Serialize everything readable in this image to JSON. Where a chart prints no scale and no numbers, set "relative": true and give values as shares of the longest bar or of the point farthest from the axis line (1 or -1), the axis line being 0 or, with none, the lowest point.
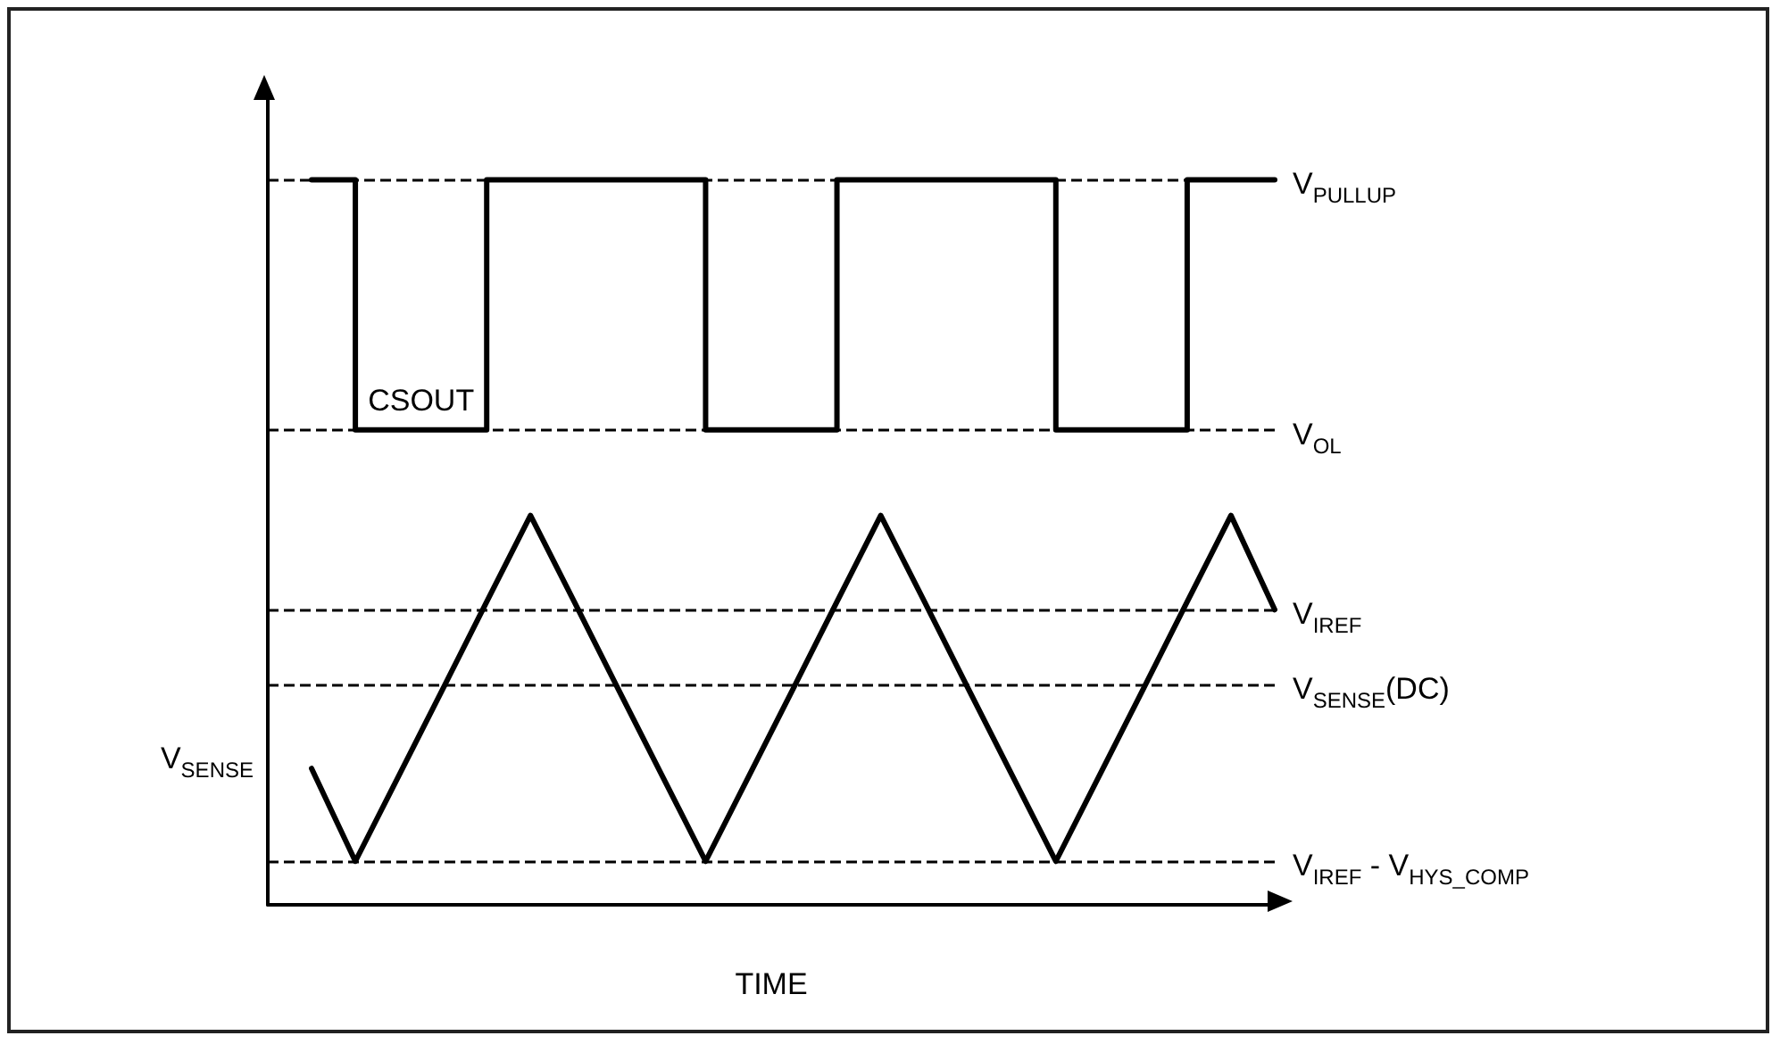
{
  "chart_data": {
    "type": "line",
    "relative": true,
    "xlabel": "TIME",
    "legend": false,
    "grid": false,
    "categories": [
      null,
      null,
      null,
      null,
      null,
      null,
      null,
      null,
      null,
      null,
      null,
      null,
      null,
      null,
      null,
      null,
      null,
      null,
      null,
      null,
      null,
      null,
      null,
      null
    ],
    "series": [
      {
        "name": "CSOUT",
        "type": "step",
        "color": "#000000",
        "values": [
          null,
          1,
          0.655,
          0.655,
          0.655,
          1,
          1,
          1,
          1,
          1,
          0.655,
          0.655,
          0.655,
          1,
          1,
          1,
          1,
          1,
          0.655,
          0.655,
          0.655,
          1,
          1,
          1
        ]
      },
      {
        "name": "V$_{SENSE}$",
        "color": "#000000",
        "values": [
          null,
          0.188,
          0.06,
          0.179,
          0.298,
          0.418,
          0.537,
          0.418,
          0.298,
          0.179,
          0.06,
          0.179,
          0.298,
          0.418,
          0.537,
          0.418,
          0.298,
          0.179,
          0.06,
          0.179,
          0.298,
          0.418,
          0.537,
          0.407
        ]
      }
    ],
    "ref_lines": [
      {
        "axis": "y",
        "value": 1,
        "label": "V$_{PULLUP}$",
        "color": "#000000",
        "line_style": "dashed"
      },
      {
        "axis": "y",
        "value": 0.655,
        "label": "V$_{OL}$",
        "color": "#000000",
        "line_style": "dashed"
      },
      {
        "axis": "y",
        "value": 0.407,
        "label": "V$_{IREF}$",
        "color": "#000000",
        "line_style": "dashed"
      },
      {
        "axis": "y",
        "value": 0.304,
        "label": "V$_{SENSE}$(DC)",
        "color": "#000000",
        "line_style": "dashed"
      },
      {
        "axis": "y",
        "value": 0.06,
        "label": "V$_{IREF}$ - V$_{HYS_COMP}$",
        "color": "#000000",
        "line_style": "dashed"
      }
    ]
  }
}
